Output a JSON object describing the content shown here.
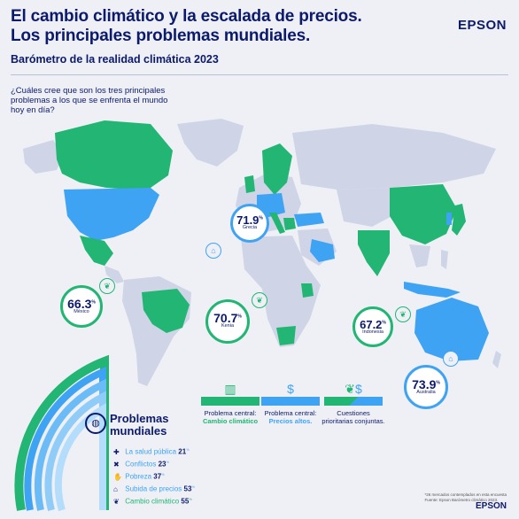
{
  "header": {
    "title_line1": "El cambio climático y la escalada de precios.",
    "title_line2": "Los principales problemas mundiales.",
    "subtitle": "Barómetro de la realidad climática 2023",
    "brand": "EPSON"
  },
  "question": "¿Cuáles cree que son los tres principales problemas a los que se enfrenta el mundo hoy en día?",
  "colors": {
    "green": "#22b573",
    "blue": "#3fa3f4",
    "navy": "#0c1a6b",
    "land": "#cfd5e6"
  },
  "bubbles": [
    {
      "value": "71.9",
      "unit": "%",
      "country": "Grecia",
      "icon": "house-icon"
    },
    {
      "value": "66.3",
      "unit": "%",
      "country": "México",
      "icon": "leaf-icon"
    },
    {
      "value": "70.7",
      "unit": "%",
      "country": "Kenia",
      "icon": "leaf-icon"
    },
    {
      "value": "67.2",
      "unit": "%",
      "country": "Indonesia",
      "icon": "leaf-icon"
    },
    {
      "value": "73.9",
      "unit": "%",
      "country": "Australia",
      "icon": "house-icon"
    }
  ],
  "legend": [
    {
      "line1": "Problema central:",
      "line2": "Cambio climático",
      "icon": "leaf-bar-icon"
    },
    {
      "line1": "Problema central:",
      "line2": "Precios altos.",
      "icon": "price-icon"
    },
    {
      "line1": "Cuestiones",
      "line2": "prioritarias conjuntas.",
      "icon": "combined-icon"
    }
  ],
  "problems": {
    "title_line1": "Problemas",
    "title_line2": "mundiales",
    "items": [
      {
        "label": "La salud pública",
        "value": "21",
        "unit": "%",
        "icon": "health-icon"
      },
      {
        "label": "Conflictos",
        "value": "23",
        "unit": "%",
        "icon": "conflict-icon"
      },
      {
        "label": "Pobreza",
        "value": "37",
        "unit": "%",
        "icon": "poverty-icon"
      },
      {
        "label": "Subida de precios",
        "value": "53",
        "unit": "%",
        "icon": "price-rise-icon"
      },
      {
        "label": "Cambio climático",
        "value": "55",
        "unit": "%",
        "icon": "climate-icon"
      }
    ]
  },
  "footer": {
    "line1": "*26 mercados contemplados en esta encuesta",
    "line2": "Fuente: Epson Barómetro climático 2023.",
    "brand": "EPSON"
  }
}
